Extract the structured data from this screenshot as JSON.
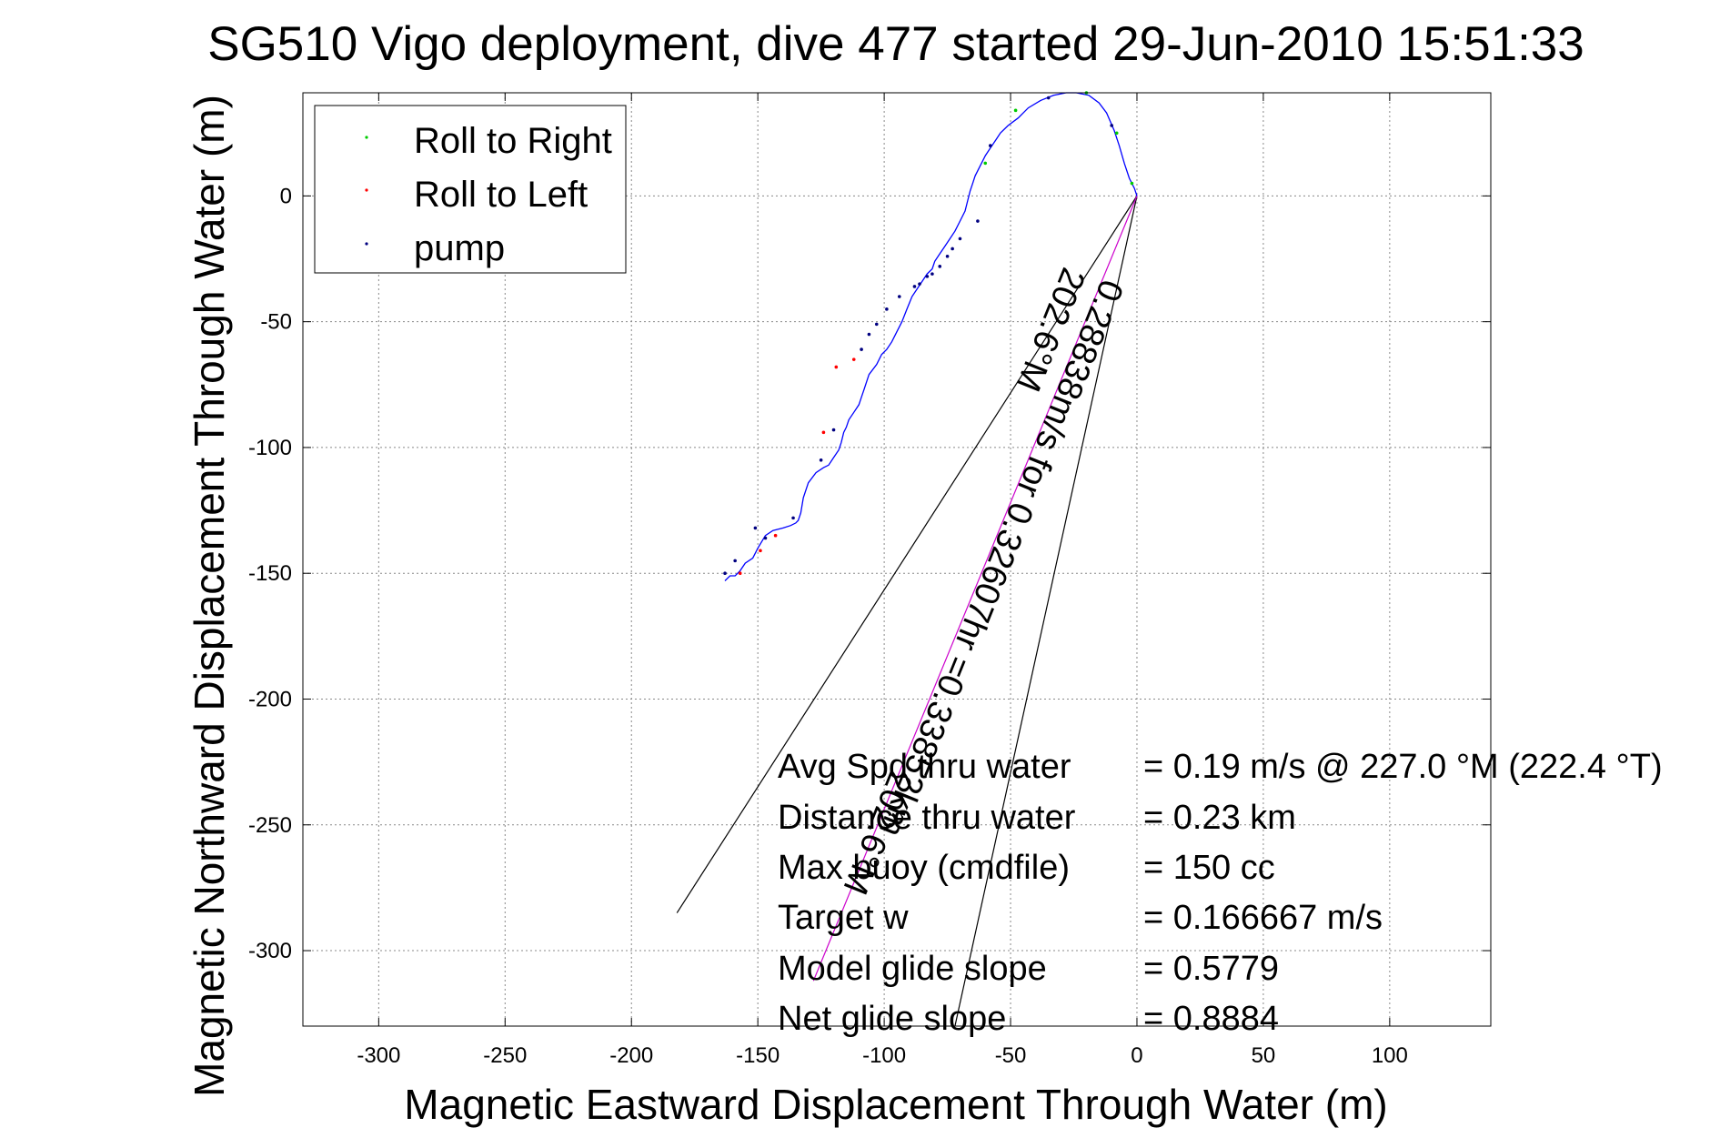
{
  "chart_data": {
    "type": "line",
    "title": "SG510 Vigo deployment, dive 477 started 29-Jun-2010 15:51:33",
    "xlabel": "Magnetic Eastward Displacement Through Water (m)",
    "ylabel": "Magnetic Northward Displacement Through Water (m)",
    "xlim": [
      -330,
      140
    ],
    "ylim": [
      -330,
      41
    ],
    "xticks": [
      -300,
      -250,
      -200,
      -150,
      -100,
      -50,
      0,
      50,
      100
    ],
    "yticks": [
      -300,
      -250,
      -200,
      -150,
      -100,
      -50,
      0
    ],
    "grid": true,
    "legend_position": "top-left",
    "legend": [
      {
        "label": "Roll to Right",
        "color": "#00cc00"
      },
      {
        "label": "Roll to Left",
        "color": "#ff0000"
      },
      {
        "label": "pump",
        "color": "#000080"
      }
    ],
    "series": [
      {
        "role": "track",
        "color": "#0000ff",
        "x": [
          0,
          -1,
          -3,
          -5,
          -7,
          -9,
          -12,
          -15,
          -19,
          -24,
          -28,
          -33,
          -38,
          -43,
          -47,
          -51,
          -54,
          -56,
          -58,
          -60,
          -62,
          -64,
          -65,
          -66,
          -67,
          -68,
          -70,
          -72,
          -74,
          -76,
          -78,
          -80,
          -81,
          -83,
          -85,
          -87,
          -89,
          -91,
          -93,
          -95,
          -97,
          -99,
          -101,
          -103,
          -106,
          -108,
          -109,
          -110,
          -112,
          -114,
          -115,
          -116,
          -117,
          -118,
          -120,
          -122,
          -124,
          -127,
          -130,
          -132,
          -133,
          -134,
          -135,
          -137,
          -140,
          -144,
          -147,
          -150,
          -152,
          -155,
          -157,
          -159,
          -161,
          -163
        ],
        "y": [
          0,
          3,
          7,
          13,
          20,
          26,
          33,
          37,
          40,
          41,
          41,
          40,
          38,
          35,
          31,
          28,
          25,
          22,
          19,
          16,
          12,
          8,
          5,
          2,
          -2,
          -6,
          -10,
          -14,
          -17,
          -20,
          -23,
          -26,
          -29,
          -31,
          -34,
          -37,
          -40,
          -45,
          -50,
          -54,
          -58,
          -61,
          -63,
          -67,
          -71,
          -77,
          -80,
          -83,
          -86,
          -89,
          -92,
          -94,
          -98,
          -101,
          -104,
          -107,
          -108,
          -110,
          -114,
          -120,
          -126,
          -129,
          -130,
          -131,
          -132,
          -133,
          -135,
          -140,
          -144,
          -146,
          -149,
          -151,
          -151,
          -153
        ]
      },
      {
        "role": "pump markers",
        "color": "#000080",
        "x": [
          -10,
          -35,
          -58,
          -63,
          -70,
          -73,
          -75,
          -78,
          -81,
          -83,
          -86,
          -88,
          -94,
          -99,
          -103,
          -106,
          -109,
          -120,
          -125,
          -136,
          -147,
          -151,
          -159,
          -163
        ],
        "y": [
          28,
          39,
          20,
          -10,
          -17,
          -21,
          -24,
          -28,
          -31,
          -32,
          -35,
          -36,
          -40,
          -45,
          -51,
          -55,
          -61,
          -93,
          -105,
          -128,
          -136,
          -132,
          -145,
          -150
        ]
      },
      {
        "role": "roll right markers",
        "color": "#00cc00",
        "x": [
          -2,
          -8,
          -20,
          -48,
          -60
        ],
        "y": [
          5,
          25,
          41,
          34,
          13
        ]
      },
      {
        "role": "roll left markers",
        "color": "#ff0000",
        "x": [
          -112,
          -119,
          -124,
          -143,
          -149,
          -157
        ],
        "y": [
          -65,
          -68,
          -94,
          -135,
          -141,
          -150
        ]
      },
      {
        "role": "heading lines",
        "color": "#000000",
        "x": [
          -182,
          0,
          -72
        ],
        "y": [
          -285,
          0,
          -330
        ]
      },
      {
        "role": "net displacement line",
        "color": "#cc00cc",
        "x": [
          0,
          -128
        ],
        "y": [
          0,
          -312
        ]
      }
    ],
    "annotations": [
      "0.28838m/s for 0.32607hr =0.33852km",
      "202.6°M",
      "202.6°M"
    ],
    "stats": [
      {
        "label": "Avg Spd thru water",
        "value": "=  0.19 m/s @ 227.0 °M (222.4 °T)"
      },
      {
        "label": "Distance thru water",
        "value": "=  0.23 km"
      },
      {
        "label": "Max buoy (cmdfile)",
        "value": "= 150 cc"
      },
      {
        "label": "Target w",
        "value": "= 0.166667 m/s"
      },
      {
        "label": "Model glide slope",
        "value": "= 0.5779"
      },
      {
        "label": "Net glide slope",
        "value": "= 0.8884"
      }
    ]
  }
}
